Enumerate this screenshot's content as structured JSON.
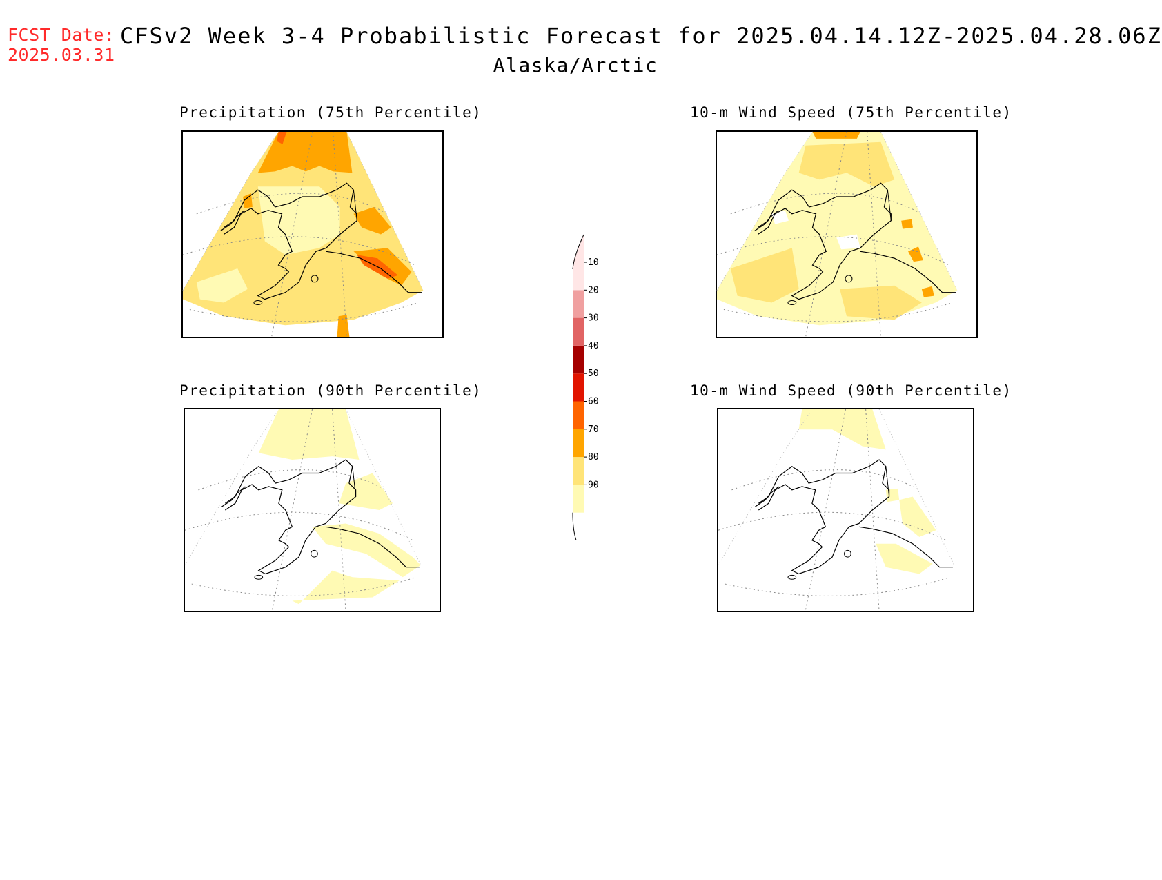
{
  "header": {
    "fcst_label": "FCST Date:",
    "fcst_date": "2025.03.31",
    "title": "CFSv2 Week 3-4 Probabilistic Forecast for 2025.04.14.12Z-2025.04.28.06Z",
    "subtitle": "Alaska/Arctic"
  },
  "panels": [
    {
      "title": "Precipitation (75th Percentile)",
      "level": "high"
    },
    {
      "title": "10-m Wind Speed (75th Percentile)",
      "level": "mid"
    },
    {
      "title": "Precipitation (90th Percentile)",
      "level": "low"
    },
    {
      "title": "10-m Wind Speed (90th Percentile)",
      "level": "verylow"
    }
  ],
  "colorbar": {
    "levels": [
      "10",
      "20",
      "30",
      "40",
      "50",
      "60",
      "70",
      "80",
      "90"
    ],
    "colors": [
      "#fffab4",
      "#ffe478",
      "#ffa500",
      "#ff6400",
      "#e11400",
      "#a50000",
      "#e16464",
      "#f0a0a0",
      "#ffe6e6"
    ]
  },
  "colors": {
    "fcst_red": "#ff2a2a",
    "c10": "#fffab4",
    "c20": "#ffe478",
    "c30": "#ffa500",
    "c40": "#ff6400"
  }
}
